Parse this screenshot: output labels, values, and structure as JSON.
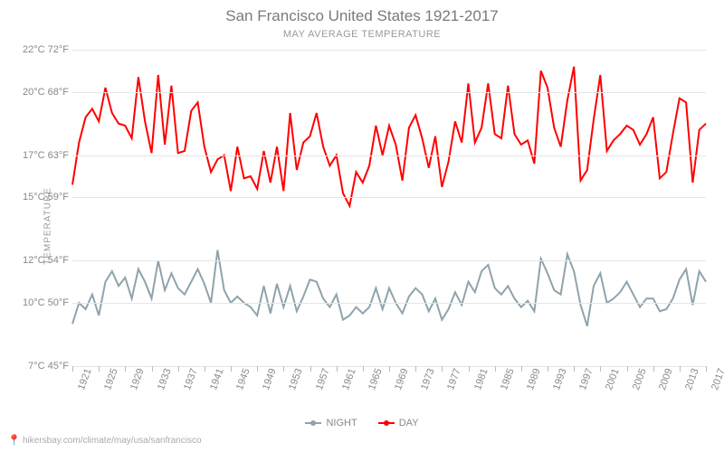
{
  "title": "San Francisco United States 1921-2017",
  "subtitle": "MAY AVERAGE TEMPERATURE",
  "y_axis_label": "TEMPERATURE",
  "footer_url": "hikersbay.com/climate/may/usa/sanfrancisco",
  "legend": {
    "night": "NIGHT",
    "day": "DAY"
  },
  "chart": {
    "type": "line",
    "background_color": "#ffffff",
    "grid_color": "#e5e5e5",
    "text_color": "#888888",
    "title_fontsize": 17,
    "subtitle_fontsize": 11,
    "tick_fontsize": 11,
    "line_width": 2,
    "colors": {
      "day": "#ff0000",
      "night": "#8fa3ad"
    },
    "x_start": 1921,
    "x_end": 2017,
    "x_ticks": [
      1921,
      1925,
      1929,
      1933,
      1937,
      1941,
      1945,
      1949,
      1953,
      1957,
      1961,
      1965,
      1969,
      1973,
      1977,
      1981,
      1985,
      1989,
      1993,
      1997,
      2001,
      2005,
      2009,
      2013,
      2017
    ],
    "y_min_c": 7,
    "y_max_c": 22,
    "y_ticks_c": [
      7,
      10,
      12,
      15,
      17,
      20,
      22
    ],
    "y_ticks_f": [
      45,
      50,
      54,
      59,
      63,
      68,
      72
    ],
    "years": [
      1921,
      1922,
      1923,
      1924,
      1925,
      1926,
      1927,
      1928,
      1929,
      1930,
      1931,
      1932,
      1933,
      1934,
      1935,
      1936,
      1937,
      1938,
      1939,
      1940,
      1941,
      1942,
      1943,
      1944,
      1945,
      1946,
      1947,
      1948,
      1949,
      1950,
      1951,
      1952,
      1953,
      1954,
      1955,
      1956,
      1957,
      1958,
      1959,
      1960,
      1961,
      1962,
      1963,
      1964,
      1965,
      1966,
      1967,
      1968,
      1969,
      1970,
      1971,
      1972,
      1973,
      1974,
      1975,
      1976,
      1977,
      1978,
      1979,
      1980,
      1981,
      1982,
      1983,
      1984,
      1985,
      1986,
      1987,
      1988,
      1989,
      1990,
      1991,
      1992,
      1993,
      1994,
      1995,
      1996,
      1997,
      1998,
      1999,
      2000,
      2001,
      2002,
      2003,
      2004,
      2005,
      2006,
      2007,
      2008,
      2009,
      2010,
      2011,
      2012,
      2013,
      2014,
      2015,
      2016,
      2017
    ],
    "day": [
      15.6,
      17.6,
      18.8,
      19.2,
      18.6,
      20.2,
      19.0,
      18.5,
      18.4,
      17.8,
      20.7,
      18.6,
      17.1,
      20.8,
      17.5,
      20.3,
      17.1,
      17.2,
      19.1,
      19.5,
      17.4,
      16.2,
      16.8,
      17.0,
      15.3,
      17.4,
      15.9,
      16.0,
      15.4,
      17.2,
      15.7,
      17.4,
      15.3,
      19.0,
      16.3,
      17.6,
      17.9,
      19.0,
      17.4,
      16.5,
      17.0,
      15.2,
      14.6,
      16.2,
      15.7,
      16.5,
      18.4,
      17.0,
      18.4,
      17.5,
      15.8,
      18.3,
      18.9,
      17.8,
      16.4,
      17.9,
      15.5,
      16.7,
      18.6,
      17.6,
      20.4,
      17.6,
      18.3,
      20.4,
      18.0,
      17.8,
      20.3,
      18.0,
      17.5,
      17.7,
      16.6,
      21.0,
      20.2,
      18.3,
      17.4,
      19.6,
      21.2,
      15.8,
      16.3,
      18.7,
      20.8,
      17.2,
      17.7,
      18.0,
      18.4,
      18.2,
      17.5,
      18.0,
      18.8,
      15.9,
      16.2,
      18.0,
      19.7,
      19.5,
      15.7,
      18.2,
      18.5
    ],
    "night": [
      9.0,
      10.0,
      9.7,
      10.4,
      9.4,
      11.0,
      11.5,
      10.8,
      11.2,
      10.2,
      11.6,
      11.0,
      10.2,
      12.0,
      10.6,
      11.4,
      10.7,
      10.4,
      11.0,
      11.6,
      10.9,
      10.0,
      12.5,
      10.6,
      10.0,
      10.3,
      10.0,
      9.8,
      9.4,
      10.8,
      9.5,
      10.9,
      9.8,
      10.8,
      9.6,
      10.3,
      11.1,
      11.0,
      10.2,
      9.8,
      10.4,
      9.2,
      9.4,
      9.8,
      9.5,
      9.8,
      10.7,
      9.7,
      10.7,
      10.0,
      9.5,
      10.3,
      10.7,
      10.4,
      9.6,
      10.2,
      9.2,
      9.7,
      10.5,
      9.9,
      11.0,
      10.5,
      11.5,
      11.8,
      10.7,
      10.4,
      10.8,
      10.2,
      9.8,
      10.1,
      9.6,
      12.1,
      11.4,
      10.6,
      10.4,
      12.3,
      11.5,
      9.9,
      8.9,
      10.8,
      11.4,
      10.0,
      10.2,
      10.5,
      11.0,
      10.4,
      9.8,
      10.2,
      10.2,
      9.6,
      9.7,
      10.2,
      11.1,
      11.6,
      9.9,
      11.5,
      11.0
    ]
  }
}
